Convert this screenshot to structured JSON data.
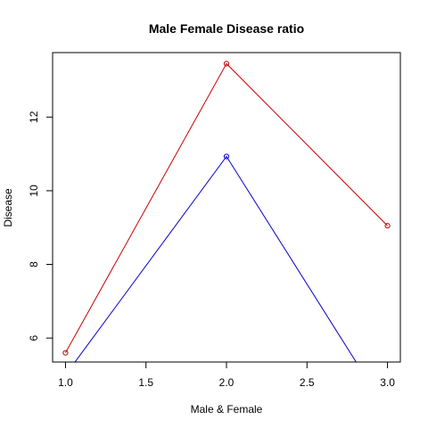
{
  "chart_data": {
    "type": "line",
    "title": "Male Female Disease ratio",
    "xlabel": "Male & Female",
    "ylabel": "Disease",
    "xlim": [
      0.92,
      3.08
    ],
    "ylim": [
      5.35,
      13.75
    ],
    "grid": false,
    "legend": "none",
    "x_ticks": [
      1.0,
      1.5,
      2.0,
      2.5,
      3.0
    ],
    "x_tick_labels": [
      "1.0",
      "1.5",
      "2.0",
      "2.5",
      "3.0"
    ],
    "y_ticks": [
      6,
      8,
      10,
      12
    ],
    "y_tick_labels": [
      "6",
      "8",
      "10",
      "12"
    ],
    "x": [
      1,
      2,
      3
    ],
    "series": [
      {
        "color": "#cc0000",
        "values": [
          5.6,
          13.45,
          9.05
        ]
      },
      {
        "color": "#0000cc",
        "values": [
          5.0,
          10.93,
          4.0
        ]
      }
    ]
  }
}
